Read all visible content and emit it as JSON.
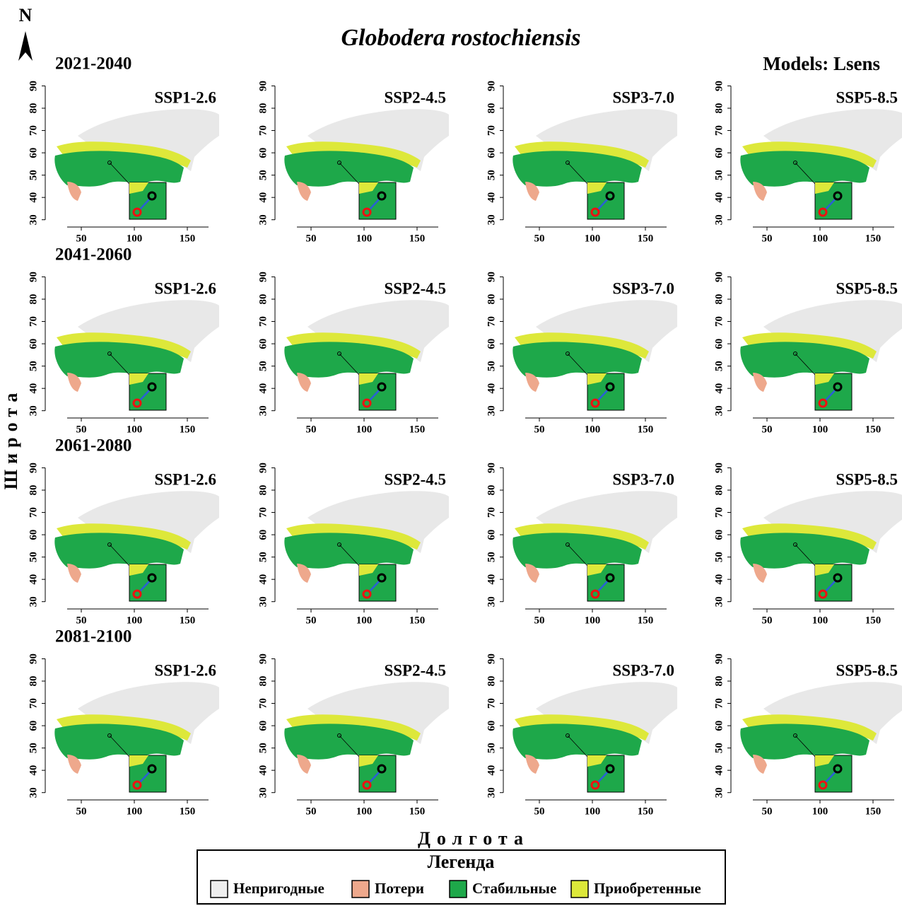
{
  "north": "N",
  "title": "Globodera rostochiensis",
  "model": "Models: Lsens",
  "y_axis_label": "Широта",
  "x_axis_label": "Долгота",
  "axes": {
    "xticks": [
      50,
      100,
      150
    ],
    "yticks": [
      30,
      40,
      50,
      60,
      70,
      80,
      90
    ],
    "xlim": [
      20,
      180
    ],
    "ylim": [
      28,
      93
    ]
  },
  "rows": [
    {
      "period": "2021-2040",
      "panels": [
        "SSP1-2.6",
        "SSP2-4.5",
        "SSP3-7.0",
        "SSP5-8.5"
      ]
    },
    {
      "period": "2041-2060",
      "panels": [
        "SSP1-2.6",
        "SSP2-4.5",
        "SSP3-7.0",
        "SSP5-8.5"
      ]
    },
    {
      "period": "2061-2080",
      "panels": [
        "SSP1-2.6",
        "SSP2-4.5",
        "SSP3-7.0",
        "SSP5-8.5"
      ]
    },
    {
      "period": "2081-2100",
      "panels": [
        "SSP1-2.6",
        "SSP2-4.5",
        "SSP3-7.0",
        "SSP5-8.5"
      ]
    }
  ],
  "legend": {
    "title": "Легенда",
    "items": [
      {
        "label": "Непригодные",
        "color": "#eeeeee"
      },
      {
        "label": "Потери",
        "color": "#eea88c"
      },
      {
        "label": "Стабильные",
        "color": "#1ea84a"
      },
      {
        "label": "Приобретенные",
        "color": "#dde83a"
      }
    ]
  }
}
